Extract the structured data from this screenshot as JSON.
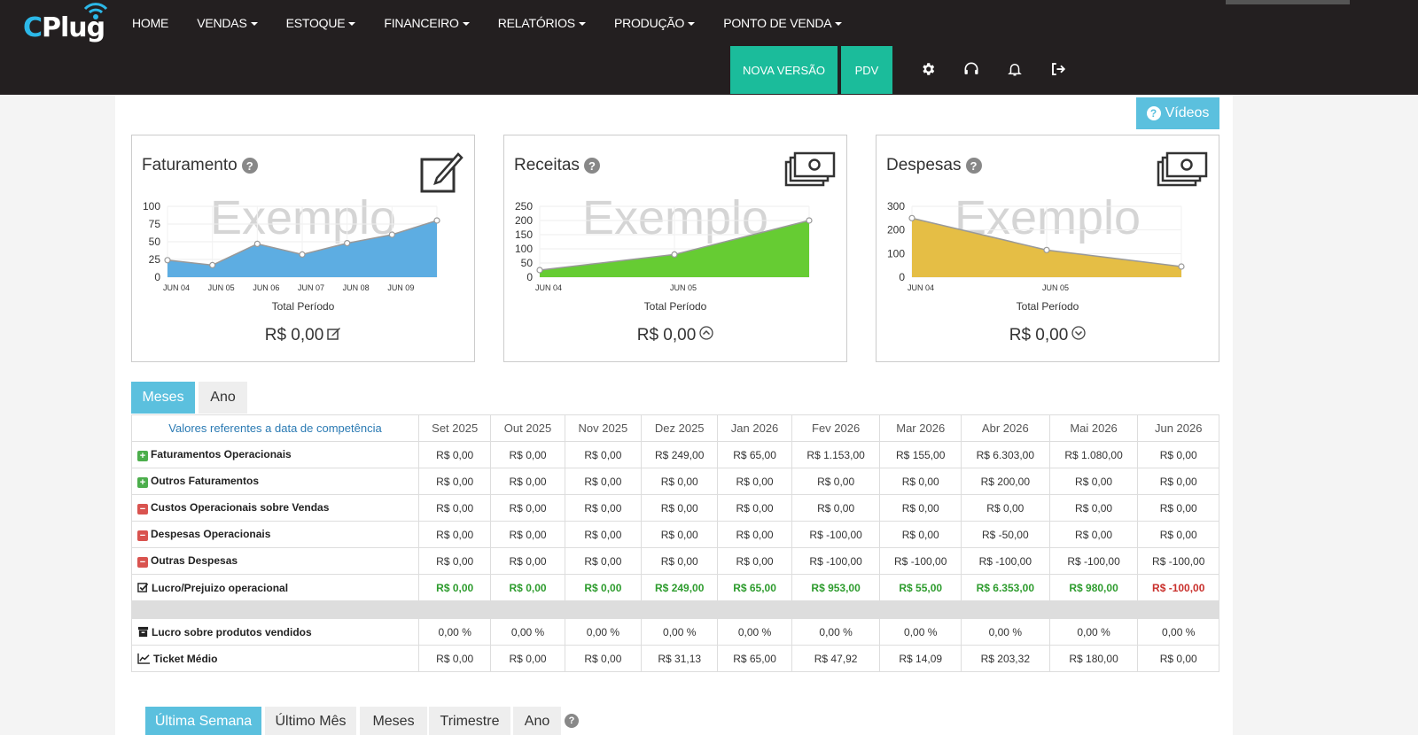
{
  "header": {
    "logo": "CPlug",
    "nav": [
      "HOME",
      "VENDAS",
      "ESTOQUE",
      "FINANCEIRO",
      "RELATÓRIOS",
      "PRODUÇÃO",
      "PONTO DE VENDA"
    ],
    "nav_has_caret": [
      false,
      true,
      true,
      true,
      true,
      true,
      true
    ],
    "buttons": {
      "nova_versao": "NOVA VERSÃO",
      "pdv": "PDV"
    },
    "icons": [
      "gear-icon",
      "headset-icon",
      "bell-icon",
      "logout-icon"
    ]
  },
  "videos_button": "Vídeos",
  "cards": [
    {
      "title": "Faturamento",
      "icon": "edit-icon",
      "watermark": "Exemplo",
      "total_label": "Total Período",
      "total_value": "R$ 0,00",
      "value_icon": "edit-small-icon",
      "color": "#5dade2",
      "chart_data": {
        "type": "area",
        "x": [
          "JUN 04",
          "JUN 05",
          "JUN 06",
          "JUN 07",
          "JUN 08",
          "JUN 09",
          ""
        ],
        "values": [
          24,
          17,
          47,
          32,
          48,
          60,
          80
        ],
        "yticks": [
          0,
          25,
          50,
          75,
          100
        ],
        "ylim": [
          0,
          100
        ]
      }
    },
    {
      "title": "Receitas",
      "icon": "money-icon",
      "watermark": "Exemplo",
      "total_label": "Total Período",
      "total_value": "R$ 0,00",
      "value_icon": "chevron-up-circle-icon",
      "color": "#66cc33",
      "chart_data": {
        "type": "area",
        "x": [
          "JUN 04",
          "JUN 05",
          ""
        ],
        "values": [
          25,
          80,
          200
        ],
        "yticks": [
          0,
          50,
          100,
          150,
          200,
          250
        ],
        "ylim": [
          0,
          250
        ]
      }
    },
    {
      "title": "Despesas",
      "icon": "money-icon",
      "watermark": "Exemplo",
      "total_label": "Total Período",
      "total_value": "R$ 0,00",
      "value_icon": "chevron-down-circle-icon",
      "color": "#e5be45",
      "chart_data": {
        "type": "area",
        "x": [
          "JUN 04",
          "JUN 05",
          ""
        ],
        "values": [
          250,
          115,
          45
        ],
        "yticks": [
          0,
          100,
          200,
          300
        ],
        "ylim": [
          0,
          300
        ]
      }
    }
  ],
  "period_tabs": [
    "Meses",
    "Ano"
  ],
  "table": {
    "ref_header": "Valores referentes a data de competência",
    "months": [
      "Set 2025",
      "Out 2025",
      "Nov 2025",
      "Dez 2025",
      "Jan 2026",
      "Fev 2026",
      "Mar 2026",
      "Abr 2026",
      "Mai 2026",
      "Jun 2026"
    ],
    "rows": [
      {
        "label": "Faturamentos Operacionais",
        "icon": "plus",
        "values": [
          "R$ 0,00",
          "R$ 0,00",
          "R$ 0,00",
          "R$ 249,00",
          "R$ 65,00",
          "R$ 1.153,00",
          "R$ 155,00",
          "R$ 6.303,00",
          "R$ 1.080,00",
          "R$ 0,00"
        ]
      },
      {
        "label": "Outros Faturamentos",
        "icon": "plus",
        "values": [
          "R$ 0,00",
          "R$ 0,00",
          "R$ 0,00",
          "R$ 0,00",
          "R$ 0,00",
          "R$ 0,00",
          "R$ 0,00",
          "R$ 200,00",
          "R$ 0,00",
          "R$ 0,00"
        ]
      },
      {
        "label": "Custos Operacionais sobre Vendas",
        "icon": "minus",
        "values": [
          "R$ 0,00",
          "R$ 0,00",
          "R$ 0,00",
          "R$ 0,00",
          "R$ 0,00",
          "R$ 0,00",
          "R$ 0,00",
          "R$ 0,00",
          "R$ 0,00",
          "R$ 0,00"
        ]
      },
      {
        "label": "Despesas Operacionais",
        "icon": "minus",
        "values": [
          "R$ 0,00",
          "R$ 0,00",
          "R$ 0,00",
          "R$ 0,00",
          "R$ 0,00",
          "R$ -100,00",
          "R$ 0,00",
          "R$ -50,00",
          "R$ 0,00",
          "R$ 0,00"
        ]
      },
      {
        "label": "Outras Despesas",
        "icon": "minus",
        "values": [
          "R$ 0,00",
          "R$ 0,00",
          "R$ 0,00",
          "R$ 0,00",
          "R$ 0,00",
          "R$ -100,00",
          "R$ -100,00",
          "R$ -100,00",
          "R$ -100,00",
          "R$ -100,00"
        ]
      },
      {
        "label": "Lucro/Prejuizo operacional",
        "icon": "check",
        "profit": true,
        "values": [
          "R$ 0,00",
          "R$ 0,00",
          "R$ 0,00",
          "R$ 249,00",
          "R$ 65,00",
          "R$ 953,00",
          "R$ 55,00",
          "R$ 6.353,00",
          "R$ 980,00",
          "R$ -100,00"
        ],
        "negative": [
          false,
          false,
          false,
          false,
          false,
          false,
          false,
          false,
          false,
          true
        ]
      },
      {
        "separator": true
      },
      {
        "label": "Lucro sobre produtos vendidos",
        "icon": "archive",
        "values": [
          "0,00 %",
          "0,00 %",
          "0,00 %",
          "0,00 %",
          "0,00 %",
          "0,00 %",
          "0,00 %",
          "0,00 %",
          "0,00 %",
          "0,00 %"
        ]
      },
      {
        "label": "Ticket Médio",
        "icon": "line-chart",
        "values": [
          "R$ 0,00",
          "R$ 0,00",
          "R$ 0,00",
          "R$ 31,13",
          "R$ 65,00",
          "R$ 47,92",
          "R$ 14,09",
          "R$ 203,32",
          "R$ 180,00",
          "R$ 0,00"
        ]
      }
    ]
  },
  "bottom_tabs": [
    "Última Semana",
    "Último Mês",
    "Meses",
    "Trimestre",
    "Ano"
  ]
}
